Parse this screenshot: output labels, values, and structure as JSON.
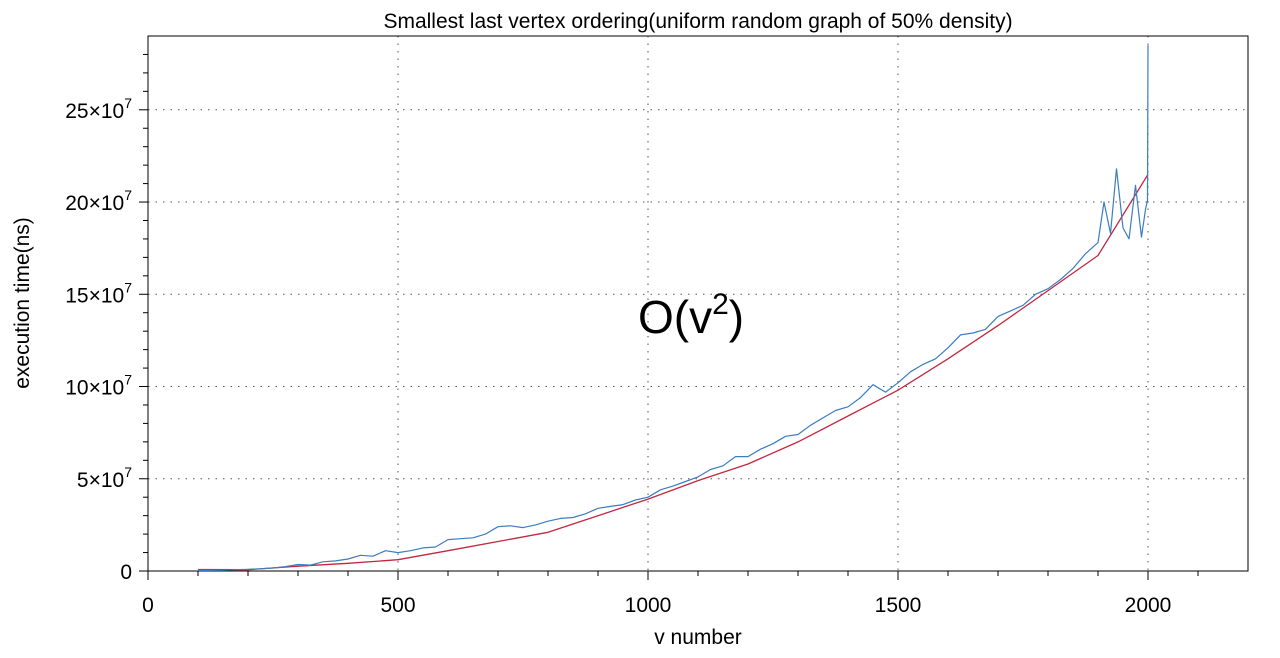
{
  "chart_data": {
    "type": "line",
    "title": "Smallest last vertex ordering(uniform random graph of 50% density)",
    "xlabel": "v number",
    "ylabel": "execution time(ns)",
    "xlim": [
      0,
      2200
    ],
    "ylim": [
      0,
      290000000
    ],
    "x_ticks": [
      0,
      500,
      1000,
      1500,
      2000
    ],
    "x_tick_labels": [
      "0",
      "500",
      "1000",
      "1500",
      "2000"
    ],
    "y_ticks": [
      0,
      50000000,
      100000000,
      150000000,
      200000000,
      250000000
    ],
    "y_tick_labels": [
      {
        "mantissa": "0",
        "exp": ""
      },
      {
        "mantissa": "5×10",
        "exp": "7"
      },
      {
        "mantissa": "10×10",
        "exp": "7"
      },
      {
        "mantissa": "15×10",
        "exp": "7"
      },
      {
        "mantissa": "20×10",
        "exp": "7"
      },
      {
        "mantissa": "25×10",
        "exp": "7"
      }
    ],
    "grid": true,
    "annotation": {
      "base": "O(v",
      "sup": "2",
      "tail": ")",
      "x": 1000,
      "y": 130000000
    },
    "series": [
      {
        "kind": "measured",
        "color": "#3b7dc1",
        "x": [
          100,
          125,
          150,
          175,
          200,
          225,
          250,
          275,
          300,
          325,
          350,
          375,
          400,
          425,
          450,
          475,
          500,
          525,
          550,
          575,
          600,
          625,
          650,
          675,
          700,
          725,
          750,
          775,
          800,
          825,
          850,
          875,
          900,
          925,
          950,
          975,
          1000,
          1025,
          1050,
          1075,
          1100,
          1125,
          1150,
          1175,
          1200,
          1225,
          1250,
          1275,
          1300,
          1325,
          1350,
          1375,
          1400,
          1425,
          1450,
          1475,
          1500,
          1525,
          1550,
          1575,
          1600,
          1625,
          1650,
          1675,
          1700,
          1725,
          1750,
          1775,
          1800,
          1825,
          1850,
          1875,
          1900,
          1912,
          1925,
          1937,
          1950,
          1962,
          1975,
          1987,
          1995,
          1999,
          2000
        ],
        "y": [
          300000,
          350000,
          500000,
          700000,
          900000,
          1200000,
          1600000,
          2400000,
          3500000,
          3200000,
          5000000,
          5500000,
          6500000,
          8500000,
          8000000,
          11000000,
          10000000,
          11000000,
          12500000,
          13000000,
          17000000,
          17500000,
          18000000,
          20000000,
          24000000,
          24500000,
          23500000,
          25000000,
          27000000,
          28500000,
          29000000,
          31000000,
          34000000,
          35000000,
          36000000,
          38500000,
          40000000,
          44000000,
          46000000,
          48500000,
          51000000,
          55000000,
          57000000,
          62000000,
          62000000,
          66000000,
          69000000,
          73000000,
          74000000,
          79000000,
          83000000,
          87000000,
          89000000,
          94000000,
          101000000,
          97000000,
          102000000,
          108000000,
          112000000,
          115000000,
          121000000,
          128000000,
          129000000,
          131000000,
          138000000,
          141000000,
          144000000,
          150000000,
          153000000,
          158000000,
          164000000,
          172000000,
          178000000,
          200000000,
          183000000,
          218000000,
          186000000,
          180000000,
          209000000,
          181000000,
          196000000,
          201000000,
          285000000
        ]
      },
      {
        "kind": "fit",
        "color": "#c3273f",
        "x": [
          100,
          200,
          300,
          400,
          500,
          600,
          700,
          800,
          900,
          1000,
          1100,
          1200,
          1300,
          1400,
          1500,
          1600,
          1700,
          1800,
          1900,
          2000
        ],
        "y": [
          800000,
          700000,
          2600000,
          4200000,
          6100000,
          11000000,
          16000000,
          21000000,
          30000000,
          39000000,
          49000000,
          58000000,
          70000000,
          84000000,
          98000000,
          115000000,
          133000000,
          152000000,
          171000000,
          215000000
        ]
      }
    ]
  }
}
